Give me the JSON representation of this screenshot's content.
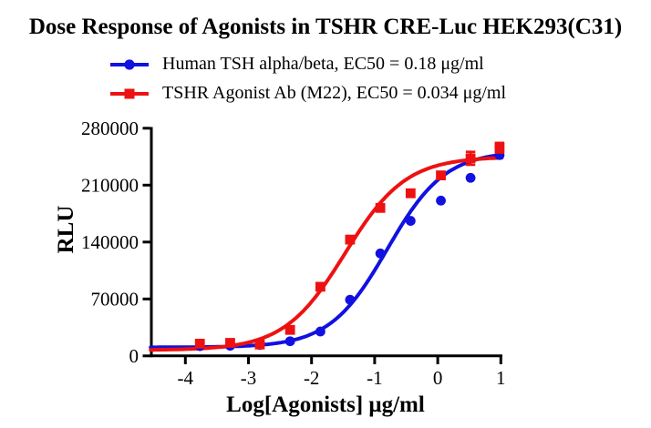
{
  "title": "Dose Response of Agonists in TSHR CRE-Luc HEK293(C31)",
  "colors": {
    "blue": "#1111e0",
    "red": "#ee1111",
    "axis": "#000000"
  },
  "legend": [
    {
      "label": "Human TSH alpha/beta, EC50 = 0.18 μg/ml",
      "marker": "circle",
      "color_key": "blue"
    },
    {
      "label": "TSHR Agonist Ab (M22), EC50 = 0.034 μg/ml",
      "marker": "square",
      "color_key": "red"
    }
  ],
  "chart_data": {
    "type": "scatter",
    "title": "Dose Response of Agonists in TSHR CRE-Luc HEK293(C31)",
    "xlabel": "Log[Agonists] μg/ml",
    "ylabel": "RLU",
    "xlim": [
      -4.55,
      1.02
    ],
    "ylim": [
      0,
      280000
    ],
    "xticks": [
      -4,
      -3,
      -2,
      -1,
      0,
      1
    ],
    "yticks": [
      0,
      70000,
      140000,
      210000,
      280000
    ],
    "grid": false,
    "legend_position": "top-left",
    "x": [
      -3.77,
      -3.29,
      -2.82,
      -2.34,
      -1.86,
      -1.39,
      -0.91,
      -0.43,
      0.05,
      0.52,
      0.98
    ],
    "series": [
      {
        "name": "Human TSH alpha/beta",
        "ec50_ug_ml": 0.18,
        "marker": "circle",
        "color_key": "blue",
        "y": [
          12000,
          12500,
          13500,
          18000,
          30000,
          69000,
          126000,
          166000,
          191000,
          219000,
          247000
        ],
        "yerr": [
          0,
          0,
          0,
          0,
          0,
          0,
          0,
          0,
          0,
          0,
          0
        ],
        "fit": {
          "bottom": 10500,
          "top": 252000,
          "logEC50": -0.8,
          "hill": 0.95
        }
      },
      {
        "name": "TSHR Agonist Ab (M22)",
        "ec50_ug_ml": 0.034,
        "marker": "square",
        "color_key": "red",
        "y": [
          15000,
          16000,
          14000,
          32000,
          85000,
          143000,
          182000,
          200000,
          222000,
          243000,
          256000
        ],
        "yerr": [
          0,
          0,
          0,
          0,
          0,
          0,
          0,
          0,
          0,
          8000,
          6000
        ],
        "fit": {
          "bottom": 7000,
          "top": 245000,
          "logEC50": -1.47,
          "hill": 0.9
        }
      }
    ]
  }
}
